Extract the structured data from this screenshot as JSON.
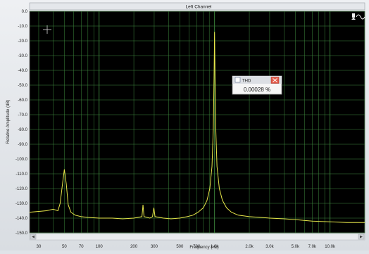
{
  "window": {
    "title": "Left Channel"
  },
  "toolbar": {
    "tool_icon": "cursor-scale-icon"
  },
  "readout": {
    "label": "THD",
    "value": "0.00028 %",
    "close_icon": "close-icon"
  },
  "colors": {
    "plot_bg": "#000000",
    "grid": "#3e8a3e",
    "trace": "#e6e64a",
    "border": "#7a7a7a"
  },
  "chart_data": {
    "type": "line",
    "title": "Left Channel",
    "xlabel": "Frequency (Hz)",
    "ylabel": "Relative Amplitude (dB)",
    "x_scale": "log",
    "xlim": [
      25,
      20000
    ],
    "ylim": [
      -150,
      0
    ],
    "grid": true,
    "x_tick_labels": [
      "30",
      "50",
      "70",
      "100",
      "200",
      "300",
      "500",
      "700",
      "1.0k",
      "2.0k",
      "3.0k",
      "5.0k",
      "7.0k",
      "10.0k"
    ],
    "x_tick_values": [
      30,
      50,
      70,
      100,
      200,
      300,
      500,
      700,
      1000,
      2000,
      3000,
      5000,
      7000,
      10000
    ],
    "y_tick_labels": [
      "0.0",
      "-10.0",
      "-20.0",
      "-30.0",
      "-40.0",
      "-50.0",
      "-60.0",
      "-70.0",
      "-80.0",
      "-90.0",
      "-100.0",
      "-110.0",
      "-120.0",
      "-130.0",
      "-140.0",
      "-150.0"
    ],
    "series": [
      {
        "points": [
          [
            25,
            -136
          ],
          [
            30,
            -135.5
          ],
          [
            35,
            -135
          ],
          [
            40,
            -134
          ],
          [
            44,
            -135
          ],
          [
            46,
            -130
          ],
          [
            48,
            -118
          ],
          [
            50,
            -107
          ],
          [
            52,
            -117
          ],
          [
            54,
            -131
          ],
          [
            57,
            -136
          ],
          [
            62,
            -138
          ],
          [
            70,
            -139
          ],
          [
            80,
            -139.5
          ],
          [
            100,
            -140
          ],
          [
            130,
            -140
          ],
          [
            160,
            -140.5
          ],
          [
            200,
            -140
          ],
          [
            235,
            -139
          ],
          [
            240,
            -131
          ],
          [
            245,
            -139
          ],
          [
            275,
            -140
          ],
          [
            290,
            -139
          ],
          [
            298,
            -133
          ],
          [
            305,
            -139
          ],
          [
            360,
            -140
          ],
          [
            420,
            -140.5
          ],
          [
            500,
            -140
          ],
          [
            580,
            -139
          ],
          [
            650,
            -138
          ],
          [
            720,
            -136
          ],
          [
            800,
            -133
          ],
          [
            860,
            -128
          ],
          [
            910,
            -120
          ],
          [
            950,
            -105
          ],
          [
            975,
            -80
          ],
          [
            990,
            -45
          ],
          [
            1000,
            -14
          ],
          [
            1010,
            -45
          ],
          [
            1025,
            -80
          ],
          [
            1050,
            -105
          ],
          [
            1100,
            -120
          ],
          [
            1170,
            -128
          ],
          [
            1270,
            -133
          ],
          [
            1400,
            -136
          ],
          [
            1600,
            -138
          ],
          [
            2000,
            -139
          ],
          [
            3000,
            -140
          ],
          [
            4000,
            -140.5
          ],
          [
            5000,
            -141
          ],
          [
            7000,
            -142
          ],
          [
            10000,
            -142.5
          ],
          [
            14000,
            -143
          ],
          [
            20000,
            -143
          ]
        ]
      }
    ]
  }
}
